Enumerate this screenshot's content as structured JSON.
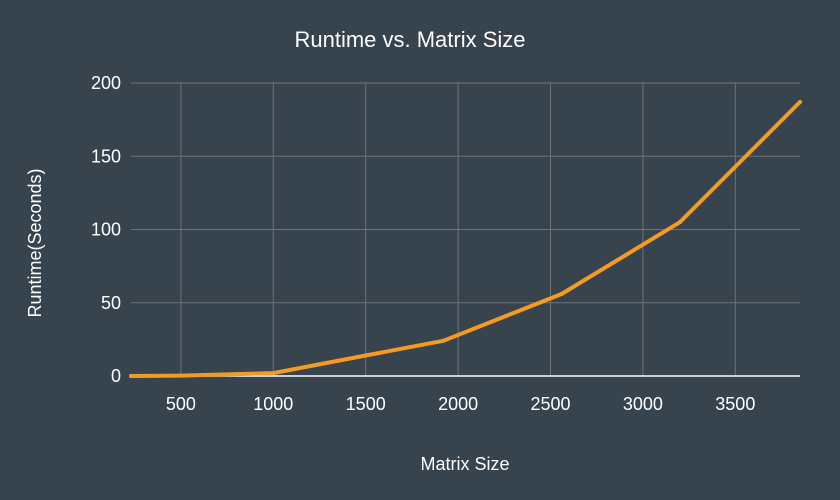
{
  "chart_data": {
    "type": "line",
    "title": "Runtime vs. Matrix Size",
    "xlabel": "Matrix Size",
    "ylabel": "Runtime(Seconds)",
    "xlim": [
      230,
      3850
    ],
    "ylim": [
      0,
      200
    ],
    "x_ticks": [
      500,
      1000,
      1500,
      2000,
      2500,
      3000,
      3500
    ],
    "y_ticks": [
      0,
      50,
      100,
      150,
      200
    ],
    "grid": true,
    "legend": "none",
    "series": [
      {
        "color": "#f59a23",
        "x": [
          230,
          500,
          1000,
          1500,
          1920,
          2560,
          3200,
          3850
        ],
        "y": [
          0,
          0.3,
          2,
          14,
          24,
          56,
          105,
          187
        ]
      }
    ]
  }
}
